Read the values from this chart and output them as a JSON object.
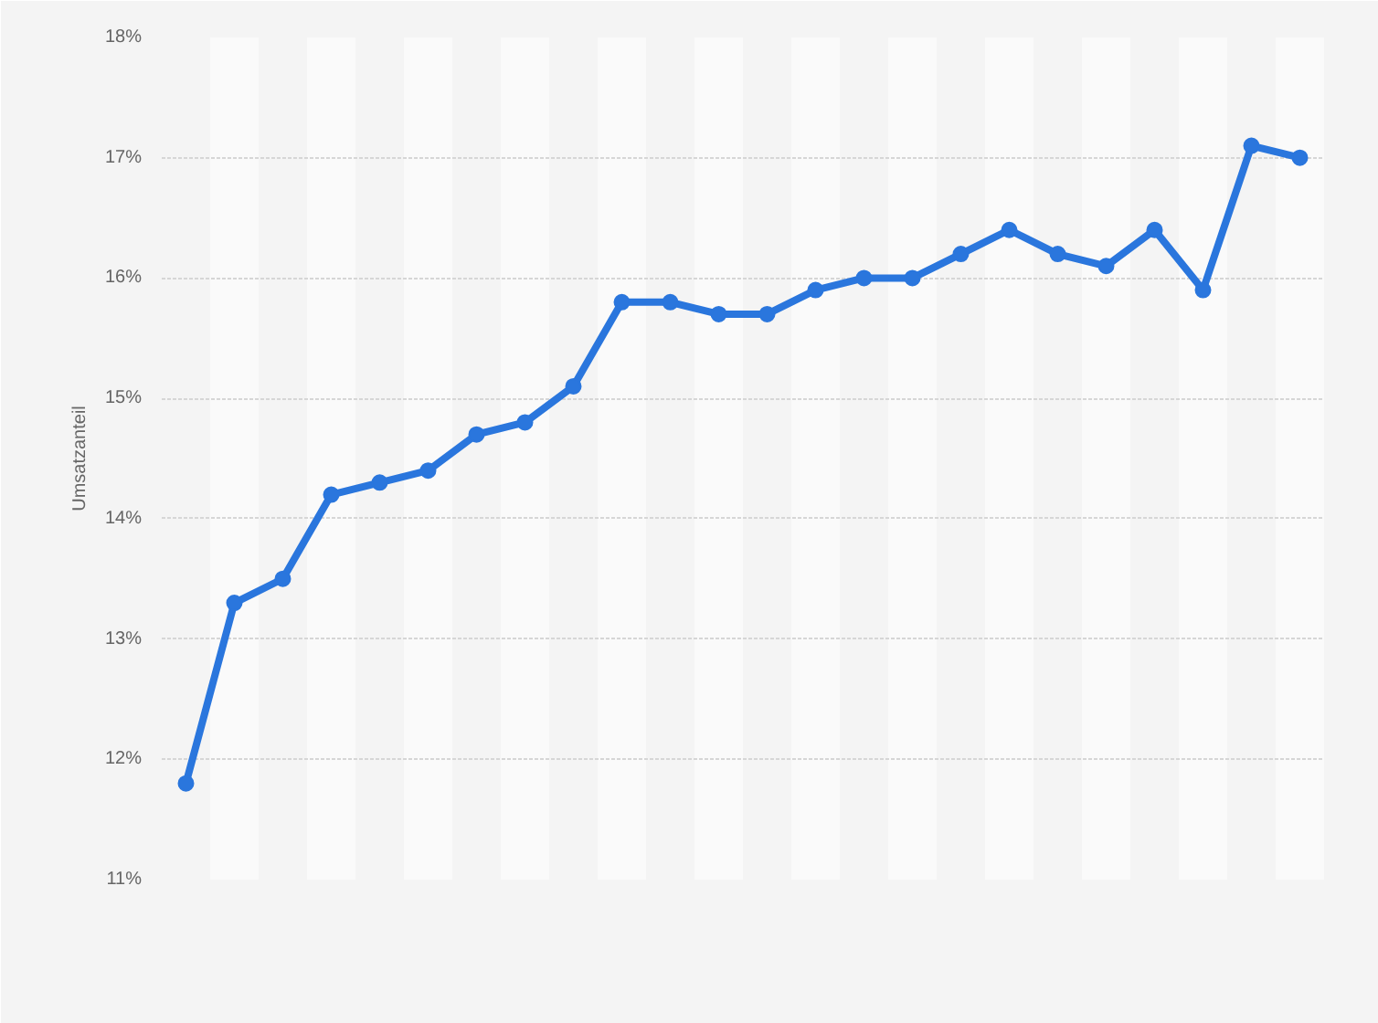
{
  "chart_data": {
    "type": "line",
    "ylabel": "Umsatzanteil",
    "categories": [
      null,
      null,
      null,
      null,
      null,
      null,
      null,
      null,
      null,
      null,
      null,
      null,
      null,
      null,
      null,
      null,
      null,
      null,
      null,
      null,
      null,
      null,
      null,
      null
    ],
    "series": [
      {
        "color": "#2a76dd",
        "values": [
          11.8,
          13.3,
          13.5,
          14.2,
          14.3,
          14.4,
          14.7,
          14.8,
          15.1,
          15.8,
          15.8,
          15.7,
          15.7,
          15.9,
          16.0,
          16.0,
          16.2,
          16.4,
          16.2,
          16.1,
          16.4,
          15.9,
          17.1,
          17.0
        ]
      }
    ],
    "ylim": [
      11,
      18
    ],
    "yticks": [
      {
        "value": 11,
        "label": "11%"
      },
      {
        "value": 12,
        "label": "12%"
      },
      {
        "value": 13,
        "label": "13%"
      },
      {
        "value": 14,
        "label": "14%"
      },
      {
        "value": 15,
        "label": "15%"
      },
      {
        "value": 16,
        "label": "16%"
      },
      {
        "value": 17,
        "label": "17%"
      },
      {
        "value": 18,
        "label": "18%"
      }
    ],
    "grid": true,
    "marker": "circle",
    "line_style": "solid"
  }
}
